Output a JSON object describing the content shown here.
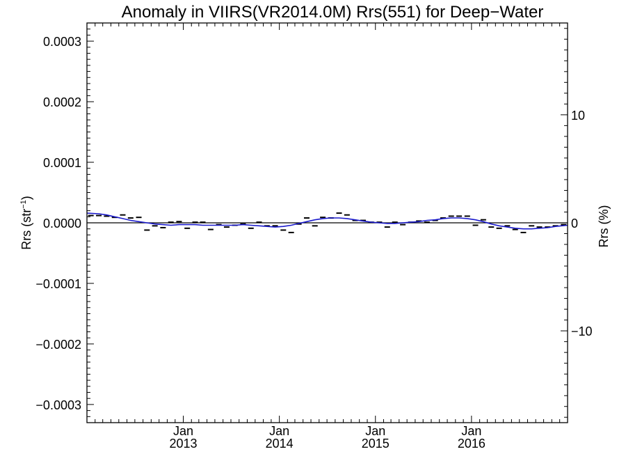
{
  "chart_data": {
    "type": "line",
    "title": "Anomaly in VIIRS(VR2014.0M) Rrs(551) for Deep−Water",
    "ylabel_left": {
      "main": "Rrs (str",
      "sup": "−1",
      "close": ")"
    },
    "ylabel_right": "Rrs (%)",
    "xlim": [
      "2012-01-01",
      "2016-12-31"
    ],
    "ylim_left": [
      -0.00033,
      0.00033
    ],
    "ylim_right": [
      -18.5,
      18.5
    ],
    "x_ticks": [
      {
        "date": "2013-01-01",
        "month": "Jan",
        "year": "2013"
      },
      {
        "date": "2014-01-01",
        "month": "Jan",
        "year": "2014"
      },
      {
        "date": "2015-01-01",
        "month": "Jan",
        "year": "2015"
      },
      {
        "date": "2016-01-01",
        "month": "Jan",
        "year": "2016"
      }
    ],
    "y_ticks_left": [
      {
        "value": 0.0003,
        "label": "0.0003"
      },
      {
        "value": 0.0002,
        "label": "0.0002"
      },
      {
        "value": 0.0001,
        "label": "0.0001"
      },
      {
        "value": 0.0,
        "label": "0.0000"
      },
      {
        "value": -0.0001,
        "label": "−0.0001"
      },
      {
        "value": -0.0002,
        "label": "−0.0002"
      },
      {
        "value": -0.0003,
        "label": "−0.0003"
      }
    ],
    "y_ticks_right": [
      {
        "value": 10,
        "label": "10"
      },
      {
        "value": 0,
        "label": "0"
      },
      {
        "value": -10,
        "label": "−10"
      }
    ],
    "reference_line": 0.0,
    "series": [
      {
        "style": "markers",
        "color": "#000000",
        "points": [
          [
            "2012-01-16",
            1.2e-05
          ],
          [
            "2012-02-15",
            1.2e-05
          ],
          [
            "2012-03-16",
            1.1e-05
          ],
          [
            "2012-04-15",
            9e-06
          ],
          [
            "2012-05-16",
            1.3e-05
          ],
          [
            "2012-06-15",
            8e-06
          ],
          [
            "2012-07-16",
            9e-06
          ],
          [
            "2012-08-16",
            -1.2e-05
          ],
          [
            "2012-09-15",
            -5e-06
          ],
          [
            "2012-10-16",
            -8e-06
          ],
          [
            "2012-11-15",
            1e-06
          ],
          [
            "2012-12-16",
            2e-06
          ],
          [
            "2013-01-16",
            -9e-06
          ],
          [
            "2013-02-15",
            1e-06
          ],
          [
            "2013-03-16",
            1e-06
          ],
          [
            "2013-04-15",
            -1.1e-05
          ],
          [
            "2013-05-16",
            -3e-06
          ],
          [
            "2013-06-15",
            -7e-06
          ],
          [
            "2013-07-16",
            -4e-06
          ],
          [
            "2013-08-16",
            -2e-06
          ],
          [
            "2013-09-15",
            -9e-06
          ],
          [
            "2013-10-16",
            1e-06
          ],
          [
            "2013-11-15",
            -5e-06
          ],
          [
            "2013-12-16",
            -5e-06
          ],
          [
            "2014-01-16",
            -1.2e-05
          ],
          [
            "2014-02-15",
            -1.6e-05
          ],
          [
            "2014-03-16",
            -2e-06
          ],
          [
            "2014-04-15",
            8e-06
          ],
          [
            "2014-05-16",
            -5e-06
          ],
          [
            "2014-06-15",
            9e-06
          ],
          [
            "2014-07-16",
            8e-06
          ],
          [
            "2014-08-16",
            1.6e-05
          ],
          [
            "2014-09-15",
            1.3e-05
          ],
          [
            "2014-10-16",
            4e-06
          ],
          [
            "2014-11-15",
            4e-06
          ],
          [
            "2014-12-16",
            1e-06
          ],
          [
            "2015-01-16",
            1e-06
          ],
          [
            "2015-02-15",
            -7e-06
          ],
          [
            "2015-03-16",
            1e-06
          ],
          [
            "2015-04-15",
            -3e-06
          ],
          [
            "2015-05-16",
            1e-06
          ],
          [
            "2015-06-15",
            3e-06
          ],
          [
            "2015-07-16",
            1e-06
          ],
          [
            "2015-08-16",
            4e-06
          ],
          [
            "2015-09-15",
            8e-06
          ],
          [
            "2015-10-16",
            1.1e-05
          ],
          [
            "2015-11-15",
            1.1e-05
          ],
          [
            "2015-12-16",
            1.1e-05
          ],
          [
            "2016-01-16",
            -4e-06
          ],
          [
            "2016-02-15",
            5e-06
          ],
          [
            "2016-03-16",
            -7e-06
          ],
          [
            "2016-04-15",
            -9e-06
          ],
          [
            "2016-05-16",
            -5e-06
          ],
          [
            "2016-06-15",
            -1.1e-05
          ],
          [
            "2016-07-16",
            -1.6e-05
          ],
          [
            "2016-08-16",
            -5e-06
          ],
          [
            "2016-09-15",
            -7e-06
          ],
          [
            "2016-10-16",
            -7e-06
          ],
          [
            "2016-11-15",
            -5e-06
          ],
          [
            "2016-12-16",
            -3e-06
          ]
        ]
      },
      {
        "style": "line",
        "color": "#1a1acc",
        "points": [
          [
            "2012-01-01",
            1.6e-05
          ],
          [
            "2012-02-15",
            1.5e-05
          ],
          [
            "2012-03-16",
            1.3e-05
          ],
          [
            "2012-04-15",
            1e-05
          ],
          [
            "2012-05-16",
            7e-06
          ],
          [
            "2012-06-15",
            4e-06
          ],
          [
            "2012-07-16",
            2e-06
          ],
          [
            "2012-08-16",
            0.0
          ],
          [
            "2012-09-15",
            -2e-06
          ],
          [
            "2012-10-16",
            -3e-06
          ],
          [
            "2012-11-15",
            -4e-06
          ],
          [
            "2012-12-16",
            -3e-06
          ],
          [
            "2013-01-16",
            -3e-06
          ],
          [
            "2013-02-15",
            -3e-06
          ],
          [
            "2013-03-16",
            -4e-06
          ],
          [
            "2013-04-15",
            -4e-06
          ],
          [
            "2013-05-16",
            -4e-06
          ],
          [
            "2013-06-15",
            -4e-06
          ],
          [
            "2013-07-16",
            -4e-06
          ],
          [
            "2013-08-16",
            -3e-06
          ],
          [
            "2013-09-15",
            -4e-06
          ],
          [
            "2013-10-16",
            -5e-06
          ],
          [
            "2013-11-15",
            -6e-06
          ],
          [
            "2013-12-16",
            -7e-06
          ],
          [
            "2014-01-16",
            -6e-06
          ],
          [
            "2014-02-15",
            -4e-06
          ],
          [
            "2014-03-16",
            -1e-06
          ],
          [
            "2014-04-15",
            2e-06
          ],
          [
            "2014-05-16",
            5e-06
          ],
          [
            "2014-06-15",
            7e-06
          ],
          [
            "2014-07-16",
            8e-06
          ],
          [
            "2014-08-16",
            8e-06
          ],
          [
            "2014-09-15",
            7e-06
          ],
          [
            "2014-10-16",
            5e-06
          ],
          [
            "2014-11-15",
            3e-06
          ],
          [
            "2014-12-16",
            1e-06
          ],
          [
            "2015-01-16",
            0.0
          ],
          [
            "2015-02-15",
            -1e-06
          ],
          [
            "2015-03-16",
            -1e-06
          ],
          [
            "2015-04-15",
            0.0
          ],
          [
            "2015-05-16",
            1e-06
          ],
          [
            "2015-06-15",
            2e-06
          ],
          [
            "2015-07-16",
            4e-06
          ],
          [
            "2015-08-16",
            5e-06
          ],
          [
            "2015-09-15",
            7e-06
          ],
          [
            "2015-10-16",
            8e-06
          ],
          [
            "2015-11-15",
            8e-06
          ],
          [
            "2015-12-16",
            7e-06
          ],
          [
            "2016-01-16",
            5e-06
          ],
          [
            "2016-02-15",
            2e-06
          ],
          [
            "2016-03-16",
            -2e-06
          ],
          [
            "2016-04-15",
            -5e-06
          ],
          [
            "2016-05-16",
            -7e-06
          ],
          [
            "2016-06-15",
            -9e-06
          ],
          [
            "2016-07-16",
            -1e-05
          ],
          [
            "2016-08-16",
            -1e-05
          ],
          [
            "2016-09-15",
            -9e-06
          ],
          [
            "2016-10-16",
            -8e-06
          ],
          [
            "2016-11-15",
            -6e-06
          ],
          [
            "2016-12-31",
            -4e-06
          ]
        ]
      }
    ]
  }
}
